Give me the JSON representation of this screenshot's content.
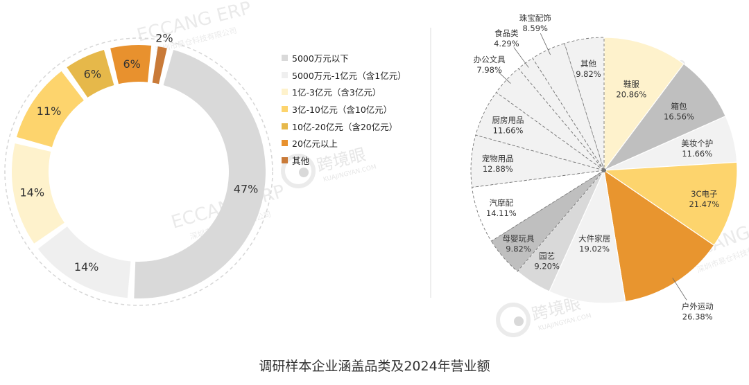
{
  "chart_data": [
    {
      "type": "pie",
      "variant": "donut",
      "labels": [
        "5000万元以下",
        "5000万元-1亿元（含1亿元）",
        "1亿-3亿元（含3亿元）",
        "3亿-10亿元（含10亿元）",
        "10亿-20亿元（含20亿元）",
        "20亿元以上",
        "其他"
      ],
      "values": [
        47,
        14,
        14,
        11,
        6,
        6,
        2
      ],
      "value_labels": [
        "47%",
        "14%",
        "14%",
        "11%",
        "6%",
        "6%",
        "2%"
      ],
      "colors": [
        "#d9d9d9",
        "#efefef",
        "#fef2cc",
        "#fdd46d",
        "#e6b84a",
        "#e8912e",
        "#c97a38"
      ],
      "legend_position": "right"
    },
    {
      "type": "pie",
      "labels": [
        "鞋服",
        "箱包",
        "美妆个护",
        "3C电子",
        "户外运动",
        "大件家居",
        "园艺",
        "母婴玩具",
        "汽摩配",
        "宠物用品",
        "厨房用品",
        "办公文具",
        "食品类",
        "珠宝配饰",
        "其他"
      ],
      "values": [
        20.86,
        16.56,
        11.66,
        21.47,
        26.38,
        19.02,
        9.2,
        9.82,
        14.11,
        12.88,
        11.66,
        7.98,
        4.29,
        8.59,
        9.82
      ],
      "value_labels": [
        "20.86%",
        "16.56%",
        "11.66%",
        "21.47%",
        "26.38%",
        "19.02%",
        "9.20%",
        "9.82%",
        "14.11%",
        "12.88%",
        "11.66%",
        "7.98%",
        "4.29%",
        "8.59%",
        "9.82%"
      ],
      "colors": [
        "#fef2cc",
        "#bfbfbf",
        "#f2f2f2",
        "#fdd46d",
        "#e8952f",
        "#f2f2f2",
        "#d9d9d9",
        "#bfbfbf",
        "#ffffff",
        "#f2f2f2",
        "#f2f2f2",
        "#f2f2f2",
        "#f2f2f2",
        "#f2f2f2",
        "#f2f2f2"
      ]
    }
  ],
  "footer": {
    "title": "调研样本企业涵盖品类及2024年营业额"
  },
  "watermarks": [
    "ECCANG ERP",
    "深圳市易仓科技有限公司",
    "跨境眼",
    "KUAJINGYAN.COM"
  ]
}
